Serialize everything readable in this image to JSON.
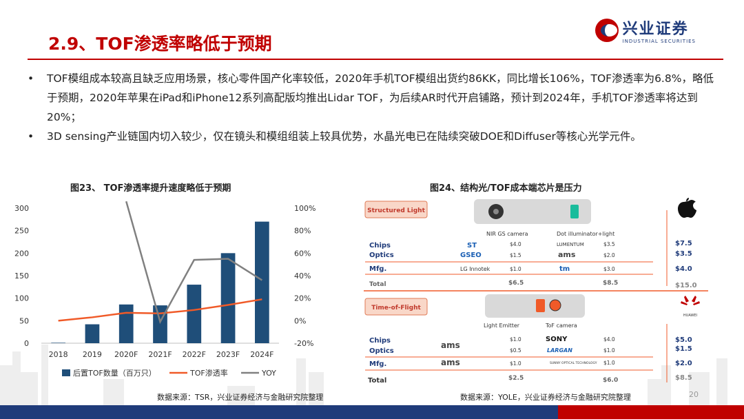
{
  "header": {
    "title": "2.9、TOF渗透率略低于预期",
    "logo_cn": "兴业证券",
    "logo_en": "INDUSTRIAL SECURITIES"
  },
  "bullets": [
    "TOF模组成本较高且缺乏应用场景，核心零件国产化率较低，2020年手机TOF模组出货约86KK，同比增长106%，TOF渗透率为6.8%，略低于预期，2020年苹果在iPad和iPhone12系列高配版均推出Lidar TOF，为后续AR时代开启铺路，预计到2024年，手机TOF渗透率将达到20%；",
    "3D sensing产业链国内切入较少，仅在镜头和模组组装上较具优势，水晶光电已在陆续突破DOE和Diffuser等核心光学元件。"
  ],
  "chart_data": [
    {
      "type": "bar",
      "title": "图23、 TOF渗透率提升速度略低于预期",
      "categories": [
        "2018",
        "2019",
        "2020F",
        "2021F",
        "2022F",
        "2023F",
        "2024F"
      ],
      "ylim": [
        0,
        300
      ],
      "yticks": [
        "0",
        "50",
        "100",
        "150",
        "200",
        "250",
        "300"
      ],
      "y2lim": [
        -20,
        100
      ],
      "y2ticks": [
        "-20%",
        "0%",
        "20%",
        "40%",
        "60%",
        "80%",
        "100%"
      ],
      "series": [
        {
          "name": "后置TOF数量（百万只）",
          "kind": "bar",
          "axis": "left",
          "color": "#1f4e79",
          "values": [
            1,
            42,
            86,
            84,
            130,
            200,
            270
          ]
        },
        {
          "name": "TOF渗透率",
          "kind": "line",
          "axis": "right",
          "color": "#f05a28",
          "values": [
            0,
            3,
            7,
            6.5,
            9.5,
            14,
            19
          ]
        },
        {
          "name": "YOY",
          "kind": "line",
          "axis": "right",
          "color": "#808080",
          "values": [
            null,
            null,
            106,
            -1,
            54,
            55,
            36
          ]
        }
      ],
      "source": "数据来源：TSR，兴业证券经济与金融研究院整理"
    },
    {
      "type": "table",
      "title": "图24、结构光/TOF成本端芯片是压力",
      "source": "数据来源：YOLE，兴业证券经济与金融研究院整理",
      "structured_light": {
        "tag": "Structured Light",
        "cam_label": "NIR GS camera",
        "dot_label": "Dot illuminator+light",
        "rows": [
          {
            "label": "Chips",
            "left_brand": "ST",
            "left_price": "$4.0",
            "right_brand": "LUMENTUM",
            "right_price": "$3.5",
            "total": "$7.5"
          },
          {
            "label": "Optics",
            "left_brand": "GSEO",
            "left_price": "$1.5",
            "right_brand": "ams",
            "right_price": "$2.0",
            "total": "$3.5"
          },
          {
            "label": "Mfg.",
            "left_brand": "LG Innotek",
            "left_price": "$1.0",
            "right_brand": "tm",
            "right_price": "$3.0",
            "total": "$4.0"
          }
        ],
        "total_label": "Total",
        "total_left": "$6.5",
        "total_right": "$8.5",
        "total_all": "$15.0"
      },
      "tof": {
        "tag": "Time-of-Flight",
        "emitter_label": "Light Emitter",
        "camera_label": "ToF camera",
        "brand_vendor": "HUAWEI",
        "rows": [
          {
            "label": "Chips",
            "left_brand": "ams",
            "left_price": "$1.0",
            "right_brand": "SONY",
            "right_price": "$4.0",
            "total": "$5.0"
          },
          {
            "label": "Optics",
            "left_brand": "",
            "left_price": "$0.5",
            "right_brand": "LARGAN",
            "right_price": "$1.0",
            "total": "$1.5"
          },
          {
            "label": "Mfg.",
            "left_brand": "ams",
            "left_price": "$1.0",
            "right_brand": "SUNNY OPTICAL TECHNOLOGY",
            "right_price": "$1.0",
            "total": "$2.0"
          }
        ],
        "total_label": "Total",
        "total_left": "$2.5",
        "total_right": "$6.0",
        "total_all": "$8.5"
      }
    }
  ],
  "page_number": "20"
}
